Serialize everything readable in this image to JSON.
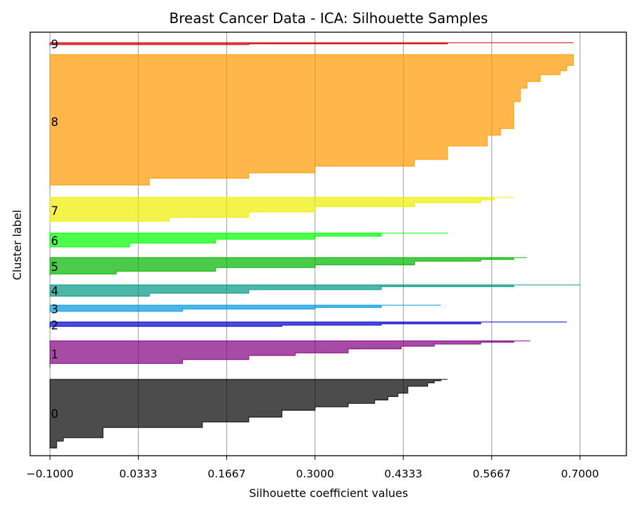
{
  "chart_data": {
    "type": "area",
    "title": "Breast Cancer Data - ICA: Silhouette Samples",
    "xlabel": "Silhouette coefficient values",
    "ylabel": "Cluster label",
    "xlim": [
      -0.13,
      0.77
    ],
    "xticks": [
      -0.1,
      0.0333,
      0.1667,
      0.3,
      0.4333,
      0.5667,
      0.7
    ],
    "xtick_labels": [
      "−0.1000",
      "0.0333",
      "0.1667",
      "0.3000",
      "0.4333",
      "0.5667",
      "0.7000"
    ],
    "grid": "vertical",
    "clusters": [
      {
        "label": "0",
        "color": "#000000",
        "band": [
          542,
          640
        ],
        "max": 0.5,
        "min": -0.09,
        "profile": [
          [
            0.5,
            0
          ],
          [
            0.49,
            0.02
          ],
          [
            0.48,
            0.05
          ],
          [
            0.47,
            0.1
          ],
          [
            0.44,
            0.2
          ],
          [
            0.425,
            0.25
          ],
          [
            0.41,
            0.3
          ],
          [
            0.39,
            0.35
          ],
          [
            0.35,
            0.4
          ],
          [
            0.3,
            0.45
          ],
          [
            0.25,
            0.55
          ],
          [
            0.2,
            0.62
          ],
          [
            0.13,
            0.7
          ],
          [
            -0.02,
            0.85
          ],
          [
            -0.08,
            0.9
          ],
          [
            -0.09,
            0.95
          ],
          [
            -0.09,
            1
          ]
        ]
      },
      {
        "label": "1",
        "color": "#800080",
        "band": [
          487,
          525
        ],
        "max": 0.625,
        "min": -0.1,
        "profile": [
          [
            0.625,
            0
          ],
          [
            0.6,
            0.05
          ],
          [
            0.55,
            0.12
          ],
          [
            0.48,
            0.2
          ],
          [
            0.43,
            0.3
          ],
          [
            0.35,
            0.45
          ],
          [
            0.27,
            0.55
          ],
          [
            0.2,
            0.7
          ],
          [
            0.1,
            0.85
          ],
          [
            -0.1,
            1
          ]
        ]
      },
      {
        "label": "2",
        "color": "#0000cc",
        "band": [
          460,
          469
        ],
        "max": 0.68,
        "min": -0.1,
        "profile": [
          [
            0.68,
            0
          ],
          [
            0.55,
            0.3
          ],
          [
            0.4,
            0.5
          ],
          [
            0.25,
            0.7
          ],
          [
            -0.1,
            1
          ]
        ]
      },
      {
        "label": "3",
        "color": "#0099dd",
        "band": [
          436,
          447
        ],
        "max": 0.49,
        "min": -0.1,
        "profile": [
          [
            0.49,
            0
          ],
          [
            0.4,
            0.3
          ],
          [
            0.3,
            0.5
          ],
          [
            0.1,
            0.8
          ],
          [
            -0.1,
            1
          ]
        ]
      },
      {
        "label": "4",
        "color": "#009980",
        "band": [
          407,
          424
        ],
        "max": 0.7,
        "min": -0.1,
        "profile": [
          [
            0.7,
            0
          ],
          [
            0.6,
            0.15
          ],
          [
            0.4,
            0.4
          ],
          [
            0.2,
            0.7
          ],
          [
            0.05,
            0.95
          ],
          [
            -0.1,
            1
          ]
        ]
      },
      {
        "label": "5",
        "color": "#00b300",
        "band": [
          368,
          394
        ],
        "max": 0.62,
        "min": -0.1,
        "profile": [
          [
            0.62,
            0
          ],
          [
            0.6,
            0.1
          ],
          [
            0.55,
            0.2
          ],
          [
            0.45,
            0.4
          ],
          [
            0.3,
            0.55
          ],
          [
            0.15,
            0.75
          ],
          [
            0.0,
            0.9
          ],
          [
            -0.1,
            1
          ]
        ]
      },
      {
        "label": "6",
        "color": "#00ff00",
        "band": [
          333,
          355
        ],
        "max": 0.5,
        "min": -0.1,
        "profile": [
          [
            0.5,
            0
          ],
          [
            0.4,
            0.2
          ],
          [
            0.3,
            0.4
          ],
          [
            0.15,
            0.65
          ],
          [
            0.02,
            0.9
          ],
          [
            -0.1,
            1
          ]
        ]
      },
      {
        "label": "7",
        "color": "#eeee00",
        "band": [
          282,
          320
        ],
        "max": 0.6,
        "min": -0.1,
        "profile": [
          [
            0.6,
            0
          ],
          [
            0.57,
            0.1
          ],
          [
            0.55,
            0.2
          ],
          [
            0.45,
            0.35
          ],
          [
            0.3,
            0.55
          ],
          [
            0.2,
            0.75
          ],
          [
            0.08,
            0.9
          ],
          [
            -0.1,
            1
          ]
        ]
      },
      {
        "label": "8",
        "color": "#ff9900",
        "band": [
          78,
          270
        ],
        "max": 0.69,
        "min": -0.1,
        "profile": [
          [
            0.69,
            0
          ],
          [
            0.69,
            0.08
          ],
          [
            0.68,
            0.12
          ],
          [
            0.67,
            0.15
          ],
          [
            0.64,
            0.2
          ],
          [
            0.62,
            0.25
          ],
          [
            0.61,
            0.35
          ],
          [
            0.6,
            0.45
          ],
          [
            0.6,
            0.55
          ],
          [
            0.58,
            0.6
          ],
          [
            0.56,
            0.68
          ],
          [
            0.5,
            0.78
          ],
          [
            0.45,
            0.83
          ],
          [
            0.3,
            0.88
          ],
          [
            0.2,
            0.92
          ],
          [
            0.05,
            0.97
          ],
          [
            -0.1,
            1
          ]
        ]
      },
      {
        "label": "9",
        "color": "#cc0000",
        "band": [
          61,
          65
        ],
        "max": 0.69,
        "min": -0.1,
        "profile": [
          [
            0.69,
            0
          ],
          [
            0.5,
            0.4
          ],
          [
            0.2,
            0.7
          ],
          [
            -0.1,
            1
          ]
        ]
      }
    ]
  }
}
